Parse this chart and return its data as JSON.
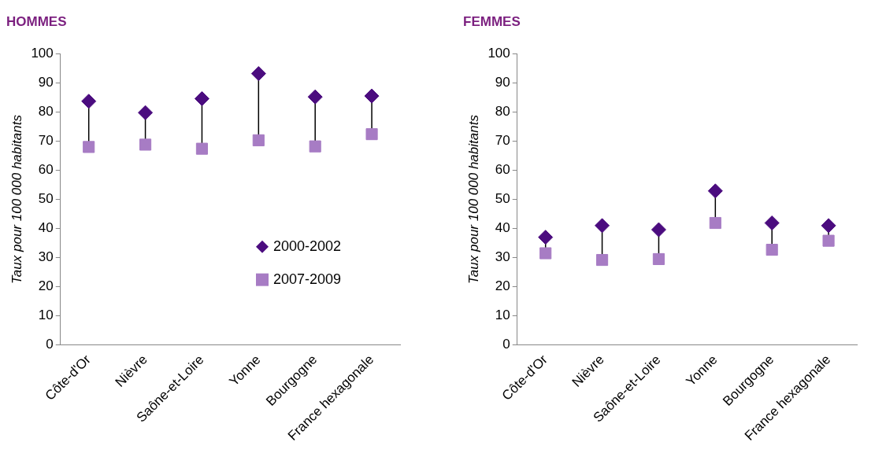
{
  "chart_data": [
    {
      "type": "scatter",
      "title": "HOMMES",
      "ylabel": "Taux pour 100 000 habitants",
      "categories": [
        "Côte-d'Or",
        "Nièvre",
        "Saône-et-Loire",
        "Yonne",
        "Bourgogne",
        "France hexagonale"
      ],
      "ylim": [
        0,
        100
      ],
      "yticks": [
        0,
        10,
        20,
        30,
        40,
        50,
        60,
        70,
        80,
        90,
        100
      ],
      "grid": false,
      "legend": "bottom right",
      "series": [
        {
          "name": "2000-2002",
          "color": "#4b0c7f",
          "marker": "diamond",
          "values": [
            83.7,
            79.8,
            84.6,
            93.2,
            85.2,
            85.5
          ]
        },
        {
          "name": "2007-2009",
          "color": "#a77cc4",
          "marker": "square",
          "values": [
            68,
            68.8,
            67.4,
            70.3,
            68.2,
            72.4
          ]
        }
      ]
    },
    {
      "type": "scatter",
      "title": "FEMMES",
      "ylabel": "Taux pour 100 000 habitants",
      "categories": [
        "Côte-d'Or",
        "Nièvre",
        "Saône-et-Loire",
        "Yonne",
        "Bourgogne",
        "France hexagonale"
      ],
      "ylim": [
        0,
        100
      ],
      "yticks": [
        0,
        10,
        20,
        30,
        40,
        50,
        60,
        70,
        80,
        90,
        100
      ],
      "grid": false,
      "series": [
        {
          "color": "#4b0c7f",
          "marker": "diamond",
          "values": [
            37,
            41,
            39.6,
            52.9,
            41.9,
            41
          ]
        },
        {
          "color": "#a77cc4",
          "marker": "square",
          "values": [
            31.5,
            29.2,
            29.5,
            41.9,
            32.7,
            35.8
          ]
        }
      ]
    }
  ]
}
